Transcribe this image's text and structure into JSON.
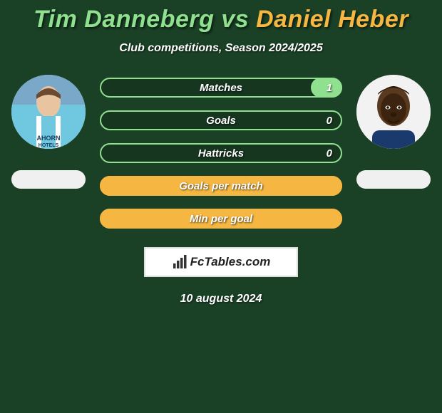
{
  "page": {
    "title_prefix": "Tim Danneberg",
    "title_vs": " vs ",
    "title_suffix": "Daniel Heber",
    "subtitle": "Club competitions, Season 2024/2025",
    "date": "10 august 2024",
    "background_color": "#1a4026",
    "title_color_left": "#8fe08f",
    "title_color_right": "#f5b742"
  },
  "brand": {
    "text": "FcTables.com"
  },
  "players": {
    "left": {
      "avatar_bg": "#6fc8e0",
      "badge_color": "#f0f0f0"
    },
    "right": {
      "avatar_bg": "#e8e8e8",
      "badge_color": "#f0f0f0"
    }
  },
  "bars": [
    {
      "label": "Matches",
      "value_right": "1",
      "track_border": "#8fe08f",
      "fill_color": "#8fe08f",
      "fill_from": "right",
      "fill_pct": 13
    },
    {
      "label": "Goals",
      "value_right": "0",
      "track_border": "#8fe08f",
      "fill_color": "#8fe08f",
      "fill_from": "right",
      "fill_pct": 0
    },
    {
      "label": "Hattricks",
      "value_right": "0",
      "track_border": "#8fe08f",
      "fill_color": "#8fe08f",
      "fill_from": "right",
      "fill_pct": 0
    },
    {
      "label": "Goals per match",
      "value_right": "",
      "track_border": "#f5b742",
      "fill_color": "#f5b742",
      "fill_from": "left",
      "fill_pct": 100
    },
    {
      "label": "Min per goal",
      "value_right": "",
      "track_border": "#f5b742",
      "fill_color": "#f5b742",
      "fill_from": "left",
      "fill_pct": 100
    }
  ]
}
